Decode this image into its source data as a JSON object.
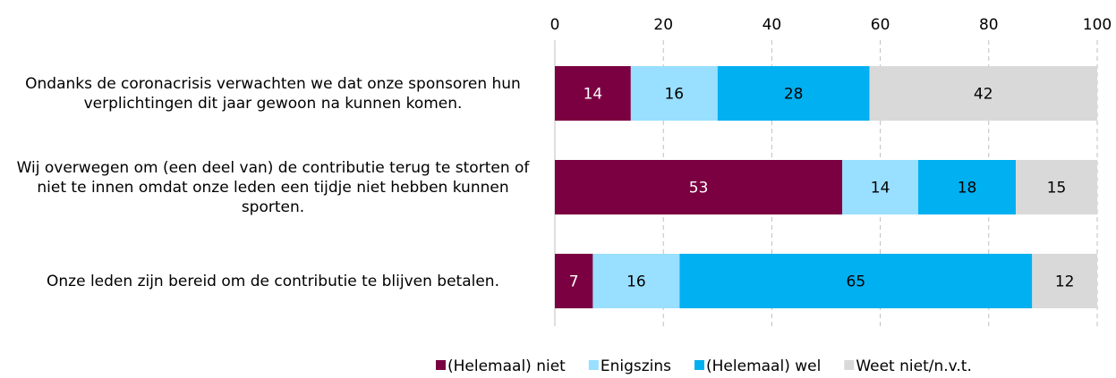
{
  "chart_data": {
    "type": "stacked_barh",
    "categories": [
      "Ondanks de coronacrisis verwachten we dat onze sponsoren hun verplichtingen dit jaar gewoon na kunnen komen.",
      "Wij overwegen om (een deel van) de contributie terug te storten of niet te innen omdat onze leden een tijdje niet hebben kunnen sporten.",
      "Onze leden zijn bereid om de contributie te blijven betalen."
    ],
    "series": [
      {
        "name": "(Helemaal) niet",
        "color": "#7b0041",
        "values": [
          14,
          53,
          7
        ]
      },
      {
        "name": "Enigszins",
        "color": "#99dfff",
        "values": [
          16,
          14,
          16
        ]
      },
      {
        "name": "(Helemaal) wel",
        "color": "#00b0f0",
        "values": [
          28,
          18,
          65
        ]
      },
      {
        "name": "Weet niet/n.v.t.",
        "color": "#d9d9d9",
        "values": [
          42,
          15,
          12
        ]
      }
    ],
    "xlim": [
      0,
      100
    ],
    "xticks": [
      0,
      20,
      40,
      60,
      80,
      100
    ],
    "grid": true,
    "legend": "bottom"
  }
}
